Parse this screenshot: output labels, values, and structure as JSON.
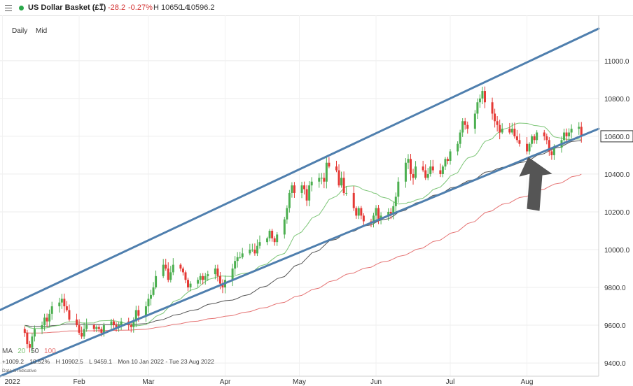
{
  "header": {
    "menu_icon": "hamburger-icon",
    "status_color": "#2aa84a",
    "instrument": "US Dollar Basket (£1)",
    "dropdown_icon": "chevron-down-icon",
    "change": "-28.2",
    "change_pct": "-0.27%",
    "high": "H 10650.4",
    "low": "L 10596.2"
  },
  "interval": {
    "period": "Daily",
    "price_type": "Mid"
  },
  "stats": {
    "ma_label": "MA",
    "ma_periods": [
      "20",
      "50",
      "100"
    ],
    "line1": [
      "+1009.2",
      "10.52%",
      "H 10902.5",
      "L 9459.1",
      "Mon 10 Jan 2022 - Tue 23 Aug 2022"
    ],
    "note": "Data is indicative"
  },
  "chart_data": {
    "type": "candlestick",
    "y_ticks": [
      9400,
      9600,
      9800,
      10000,
      10200,
      10400,
      10600,
      10800,
      11000
    ],
    "y_tick_labels": [
      "9400.0",
      "9600.0",
      "9800.0",
      "10000.0",
      "10200.0",
      "10400.0",
      "10600.0",
      "10800.0",
      "11000.0"
    ],
    "ylim": [
      9330,
      11240
    ],
    "x_labels": [
      "2022",
      "Feb",
      "Mar",
      "Apr",
      "May",
      "Jun",
      "Jul",
      "Aug"
    ],
    "x_label_dates": [
      "2022-01-01",
      "2022-02-01",
      "2022-03-01",
      "2022-04-01",
      "2022-05-01",
      "2022-06-01",
      "2022-07-01",
      "2022-08-01"
    ],
    "xlim": [
      "2021-12-31",
      "2022-08-30"
    ],
    "last_price": 10600,
    "last_price_label": "10600.0",
    "grid": true,
    "colors": {
      "up": "#4caf50",
      "down": "#e53935",
      "ma20": "#7cc576",
      "ma50": "#555555",
      "ma100": "#e57373",
      "trendline": "#4f7fae",
      "arrow": "#555555"
    },
    "closes": [
      [
        "2022-01-10",
        9560
      ],
      [
        "2022-01-11",
        9500
      ],
      [
        "2022-01-12",
        9480
      ],
      [
        "2022-01-13",
        9540
      ],
      [
        "2022-01-14",
        9580
      ],
      [
        "2022-01-17",
        9600
      ],
      [
        "2022-01-18",
        9640
      ],
      [
        "2022-01-19",
        9620
      ],
      [
        "2022-01-20",
        9660
      ],
      [
        "2022-01-21",
        9700
      ],
      [
        "2022-01-24",
        9720
      ],
      [
        "2022-01-25",
        9740
      ],
      [
        "2022-01-26",
        9700
      ],
      [
        "2022-01-27",
        9680
      ],
      [
        "2022-01-28",
        9630
      ],
      [
        "2022-01-31",
        9600
      ],
      [
        "2022-02-01",
        9560
      ],
      [
        "2022-02-02",
        9540
      ],
      [
        "2022-02-03",
        9580
      ],
      [
        "2022-02-04",
        9600
      ],
      [
        "2022-02-07",
        9580
      ],
      [
        "2022-02-08",
        9590
      ],
      [
        "2022-02-09",
        9580
      ],
      [
        "2022-02-10",
        9560
      ],
      [
        "2022-02-11",
        9600
      ],
      [
        "2022-02-14",
        9620
      ],
      [
        "2022-02-15",
        9600
      ],
      [
        "2022-02-16",
        9590
      ],
      [
        "2022-02-17",
        9600
      ],
      [
        "2022-02-18",
        9620
      ],
      [
        "2022-02-21",
        9600
      ],
      [
        "2022-02-22",
        9590
      ],
      [
        "2022-02-23",
        9620
      ],
      [
        "2022-02-24",
        9680
      ],
      [
        "2022-02-25",
        9650
      ],
      [
        "2022-02-28",
        9700
      ],
      [
        "2022-03-01",
        9740
      ],
      [
        "2022-03-02",
        9760
      ],
      [
        "2022-03-03",
        9800
      ],
      [
        "2022-03-04",
        9860
      ],
      [
        "2022-03-07",
        9920
      ],
      [
        "2022-03-08",
        9900
      ],
      [
        "2022-03-09",
        9840
      ],
      [
        "2022-03-10",
        9880
      ],
      [
        "2022-03-11",
        9920
      ],
      [
        "2022-03-14",
        9900
      ],
      [
        "2022-03-15",
        9880
      ],
      [
        "2022-03-16",
        9840
      ],
      [
        "2022-03-17",
        9800
      ],
      [
        "2022-03-18",
        9820
      ],
      [
        "2022-03-21",
        9840
      ],
      [
        "2022-03-22",
        9860
      ],
      [
        "2022-03-23",
        9840
      ],
      [
        "2022-03-24",
        9860
      ],
      [
        "2022-03-25",
        9870
      ],
      [
        "2022-03-28",
        9900
      ],
      [
        "2022-03-29",
        9860
      ],
      [
        "2022-03-30",
        9820
      ],
      [
        "2022-03-31",
        9800
      ],
      [
        "2022-04-01",
        9840
      ],
      [
        "2022-04-04",
        9900
      ],
      [
        "2022-04-05",
        9940
      ],
      [
        "2022-04-06",
        9960
      ],
      [
        "2022-04-07",
        9960
      ],
      [
        "2022-04-08",
        9980
      ],
      [
        "2022-04-11",
        10000
      ],
      [
        "2022-04-12",
        10000
      ],
      [
        "2022-04-13",
        9980
      ],
      [
        "2022-04-14",
        10020
      ],
      [
        "2022-04-15",
        10040
      ],
      [
        "2022-04-18",
        10060
      ],
      [
        "2022-04-19",
        10100
      ],
      [
        "2022-04-20",
        10060
      ],
      [
        "2022-04-21",
        10040
      ],
      [
        "2022-04-22",
        10080
      ],
      [
        "2022-04-25",
        10160
      ],
      [
        "2022-04-26",
        10220
      ],
      [
        "2022-04-27",
        10300
      ],
      [
        "2022-04-28",
        10340
      ],
      [
        "2022-04-29",
        10300
      ],
      [
        "2022-05-02",
        10340
      ],
      [
        "2022-05-03",
        10320
      ],
      [
        "2022-05-04",
        10260
      ],
      [
        "2022-05-05",
        10340
      ],
      [
        "2022-05-06",
        10360
      ],
      [
        "2022-05-09",
        10380
      ],
      [
        "2022-05-10",
        10380
      ],
      [
        "2022-05-11",
        10360
      ],
      [
        "2022-05-12",
        10460
      ],
      [
        "2022-05-13",
        10440
      ],
      [
        "2022-05-16",
        10420
      ],
      [
        "2022-05-17",
        10340
      ],
      [
        "2022-05-18",
        10380
      ],
      [
        "2022-05-19",
        10300
      ],
      [
        "2022-05-20",
        10300
      ],
      [
        "2022-05-23",
        10220
      ],
      [
        "2022-05-24",
        10180
      ],
      [
        "2022-05-25",
        10220
      ],
      [
        "2022-05-26",
        10180
      ],
      [
        "2022-05-27",
        10150
      ],
      [
        "2022-05-30",
        10140
      ],
      [
        "2022-05-31",
        10180
      ],
      [
        "2022-06-01",
        10220
      ],
      [
        "2022-06-02",
        10160
      ],
      [
        "2022-06-03",
        10180
      ],
      [
        "2022-06-06",
        10200
      ],
      [
        "2022-06-07",
        10190
      ],
      [
        "2022-06-08",
        10230
      ],
      [
        "2022-06-09",
        10280
      ],
      [
        "2022-06-10",
        10360
      ],
      [
        "2022-06-13",
        10460
      ],
      [
        "2022-06-14",
        10480
      ],
      [
        "2022-06-15",
        10400
      ],
      [
        "2022-06-16",
        10380
      ],
      [
        "2022-06-17",
        10440
      ],
      [
        "2022-06-20",
        10420
      ],
      [
        "2022-06-21",
        10380
      ],
      [
        "2022-06-22",
        10400
      ],
      [
        "2022-06-23",
        10440
      ],
      [
        "2022-06-24",
        10420
      ],
      [
        "2022-06-27",
        10400
      ],
      [
        "2022-06-28",
        10440
      ],
      [
        "2022-06-29",
        10480
      ],
      [
        "2022-06-30",
        10470
      ],
      [
        "2022-07-01",
        10520
      ],
      [
        "2022-07-04",
        10560
      ],
      [
        "2022-07-05",
        10620
      ],
      [
        "2022-07-06",
        10680
      ],
      [
        "2022-07-07",
        10660
      ],
      [
        "2022-07-08",
        10640
      ],
      [
        "2022-07-11",
        10720
      ],
      [
        "2022-07-12",
        10780
      ],
      [
        "2022-07-13",
        10800
      ],
      [
        "2022-07-14",
        10840
      ],
      [
        "2022-07-15",
        10780
      ],
      [
        "2022-07-18",
        10720
      ],
      [
        "2022-07-19",
        10680
      ],
      [
        "2022-07-20",
        10660
      ],
      [
        "2022-07-21",
        10620
      ],
      [
        "2022-07-22",
        10640
      ],
      [
        "2022-07-25",
        10620
      ],
      [
        "2022-07-26",
        10640
      ],
      [
        "2022-07-27",
        10600
      ],
      [
        "2022-07-28",
        10580
      ],
      [
        "2022-07-29",
        10560
      ],
      [
        "2022-08-01",
        10520
      ],
      [
        "2022-08-02",
        10560
      ],
      [
        "2022-08-03",
        10600
      ],
      [
        "2022-08-04",
        10580
      ],
      [
        "2022-08-05",
        10620
      ],
      [
        "2022-08-08",
        10600
      ],
      [
        "2022-08-09",
        10580
      ],
      [
        "2022-08-10",
        10520
      ],
      [
        "2022-08-11",
        10500
      ],
      [
        "2022-08-12",
        10540
      ],
      [
        "2022-08-15",
        10580
      ],
      [
        "2022-08-16",
        10620
      ],
      [
        "2022-08-17",
        10600
      ],
      [
        "2022-08-18",
        10620
      ],
      [
        "2022-08-19",
        10640
      ],
      [
        "2022-08-22",
        10650
      ],
      [
        "2022-08-23",
        10600
      ]
    ],
    "trendlines": [
      {
        "name": "upper",
        "from": [
          "2021-12-31",
          9680
        ],
        "to": [
          "2022-08-30",
          11170
        ]
      },
      {
        "name": "lower",
        "from": [
          "2021-12-31",
          9330
        ],
        "to": [
          "2022-08-30",
          10640
        ]
      }
    ],
    "annotation": {
      "type": "arrow",
      "at": [
        "2022-08-01",
        10490
      ]
    }
  }
}
